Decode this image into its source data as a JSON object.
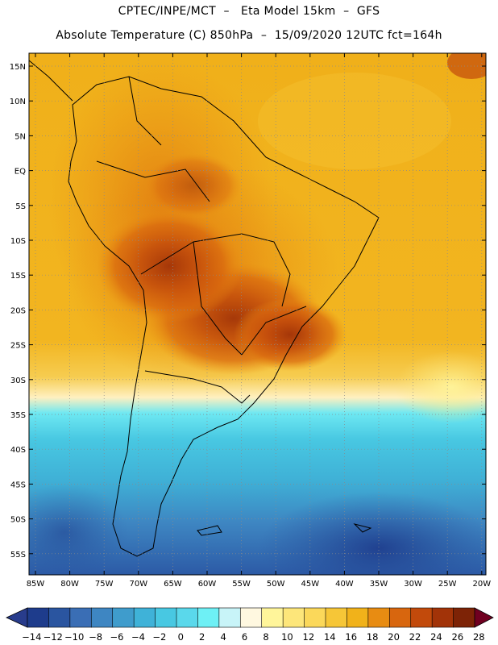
{
  "header": {
    "title_line1": "CPTEC/INPE/MCT  –   Eta Model 15km  –  GFS",
    "title_line2": "Absolute Temperature (C) 850hPa  –  15/09/2020 12UTC fct=164h"
  },
  "map": {
    "lat_labels": [
      "15N",
      "10N",
      "5N",
      "EQ",
      "5S",
      "10S",
      "15S",
      "20S",
      "25S",
      "30S",
      "35S",
      "40S",
      "45S",
      "50S",
      "55S"
    ],
    "lon_labels": [
      "85W",
      "80W",
      "75W",
      "70W",
      "65W",
      "60W",
      "55W",
      "50W",
      "45W",
      "40W",
      "35W",
      "30W",
      "25W",
      "20W"
    ],
    "gridlines": true
  },
  "colorbar": {
    "labels": [
      "-14",
      "-12",
      "-10",
      "-8",
      "-6",
      "-4",
      "-2",
      "0",
      "2",
      "4",
      "6",
      "8",
      "10",
      "12",
      "14",
      "16",
      "18",
      "20",
      "22",
      "24",
      "26",
      "28"
    ],
    "colors": [
      "#1e3c8c",
      "#2a55a0",
      "#3a6eb5",
      "#3e86c2",
      "#3f9ccc",
      "#3fb2d8",
      "#48c8e2",
      "#5ad8eb",
      "#6ef0f5",
      "#c8f4f8",
      "#fff8e0",
      "#fff59a",
      "#fde67a",
      "#fbd85a",
      "#f6c637",
      "#f1b21a",
      "#e88c12",
      "#d8660e",
      "#c24a0b",
      "#a23308",
      "#7d2306"
    ],
    "low_arrow_color": "#283c8c",
    "high_arrow_color": "#700020"
  }
}
